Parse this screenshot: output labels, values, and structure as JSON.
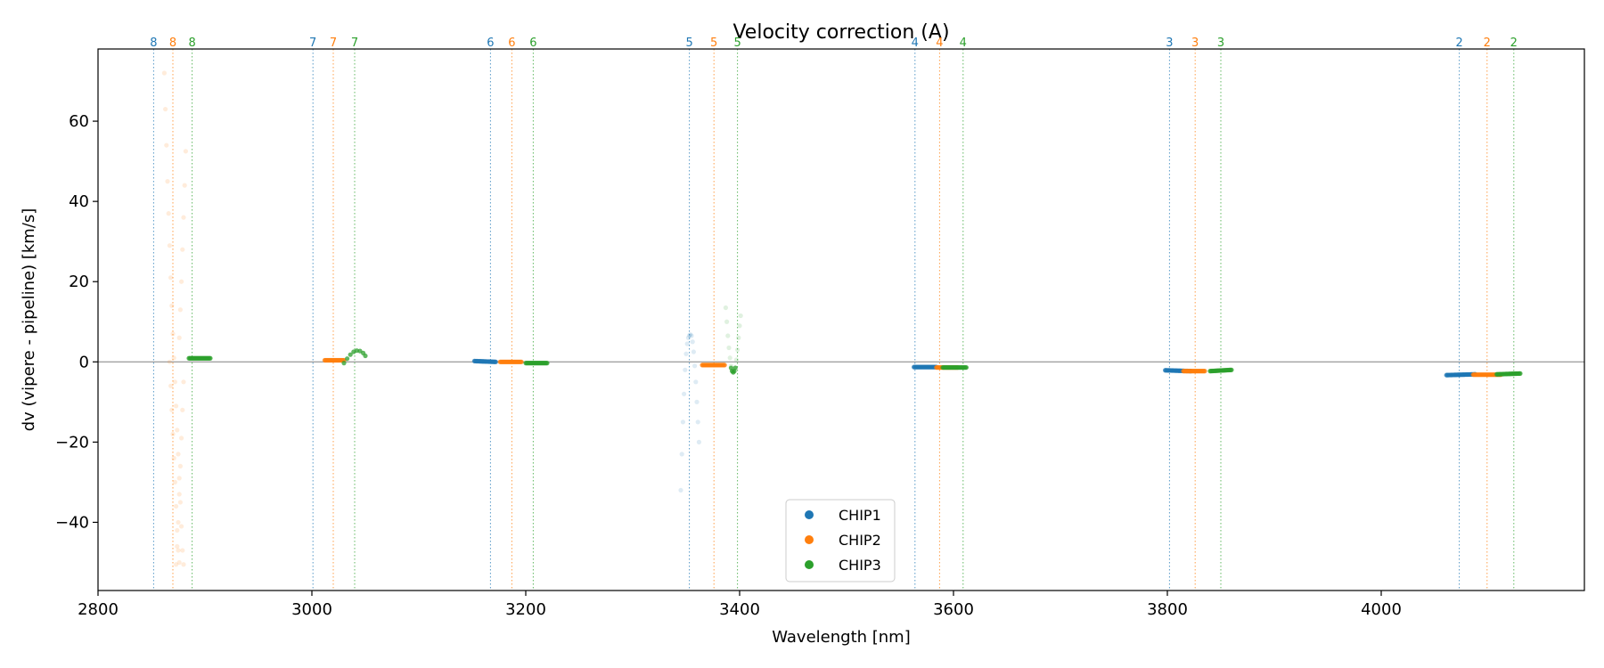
{
  "chart_data": {
    "type": "scatter",
    "title": "Velocity correction (A)",
    "xlabel": "Wavelength [nm]",
    "ylabel": "dv (vipere - pipeline) [km/s]",
    "xlim": [
      2800,
      4190
    ],
    "ylim": [
      -57,
      78
    ],
    "xticks": [
      2800,
      3000,
      3200,
      3400,
      3600,
      3800,
      4000
    ],
    "yticks": [
      -40,
      -20,
      0,
      20,
      40,
      60
    ],
    "xtick_labels": [
      "2800",
      "3000",
      "3200",
      "3400",
      "3600",
      "3800",
      "4000"
    ],
    "ytick_labels": [
      "−40",
      "−20",
      "0",
      "20",
      "40",
      "60"
    ],
    "zero_line": 0,
    "legend": {
      "placement": "lower-center",
      "entries": [
        "CHIP1",
        "CHIP2",
        "CHIP3"
      ]
    },
    "colors": {
      "CHIP1": "#1f77b4",
      "CHIP2": "#ff7f0e",
      "CHIP3": "#2ca02c"
    },
    "order_markers": [
      {
        "order": "8",
        "chip": "CHIP1",
        "x": 2852
      },
      {
        "order": "8",
        "chip": "CHIP2",
        "x": 2870
      },
      {
        "order": "8",
        "chip": "CHIP3",
        "x": 2888
      },
      {
        "order": "7",
        "chip": "CHIP1",
        "x": 3001
      },
      {
        "order": "7",
        "chip": "CHIP2",
        "x": 3020
      },
      {
        "order": "7",
        "chip": "CHIP3",
        "x": 3040
      },
      {
        "order": "6",
        "chip": "CHIP1",
        "x": 3167
      },
      {
        "order": "6",
        "chip": "CHIP2",
        "x": 3187
      },
      {
        "order": "6",
        "chip": "CHIP3",
        "x": 3207
      },
      {
        "order": "5",
        "chip": "CHIP1",
        "x": 3353
      },
      {
        "order": "5",
        "chip": "CHIP2",
        "x": 3376
      },
      {
        "order": "5",
        "chip": "CHIP3",
        "x": 3398
      },
      {
        "order": "4",
        "chip": "CHIP1",
        "x": 3564
      },
      {
        "order": "4",
        "chip": "CHIP2",
        "x": 3587
      },
      {
        "order": "4",
        "chip": "CHIP3",
        "x": 3609
      },
      {
        "order": "3",
        "chip": "CHIP1",
        "x": 3802
      },
      {
        "order": "3",
        "chip": "CHIP2",
        "x": 3826
      },
      {
        "order": "3",
        "chip": "CHIP3",
        "x": 3850
      },
      {
        "order": "2",
        "chip": "CHIP1",
        "x": 4073
      },
      {
        "order": "2",
        "chip": "CHIP2",
        "x": 4099
      },
      {
        "order": "2",
        "chip": "CHIP3",
        "x": 4124
      }
    ],
    "series": [
      {
        "name": "CHIP1",
        "segments": [
          {
            "x0": 3152,
            "x1": 3172,
            "y0": 0.2,
            "y1": 0.0,
            "faint": false
          },
          {
            "x0": 3563,
            "x1": 3584,
            "y0": -1.3,
            "y1": -1.3,
            "faint": false
          },
          {
            "x0": 3798,
            "x1": 3822,
            "y0": -2.1,
            "y1": -2.3,
            "faint": false
          },
          {
            "x0": 4061,
            "x1": 4088,
            "y0": -3.3,
            "y1": -3.1,
            "faint": false
          }
        ],
        "curves": [
          {
            "points": [
              [
                3345,
                -32
              ],
              [
                3346,
                -23
              ],
              [
                3347,
                -15
              ],
              [
                3348,
                -8
              ],
              [
                3349,
                -2
              ],
              [
                3350,
                2
              ],
              [
                3351,
                4.5
              ],
              [
                3352,
                6
              ],
              [
                3353,
                6.6
              ],
              [
                3354,
                6.8
              ],
              [
                3355,
                6.5
              ],
              [
                3356,
                5
              ],
              [
                3357,
                2.5
              ],
              [
                3358,
                -1
              ],
              [
                3359,
                -5
              ],
              [
                3360,
                -10
              ],
              [
                3361,
                -15
              ],
              [
                3362,
                -20
              ]
            ],
            "faint": true
          }
        ]
      },
      {
        "name": "CHIP2",
        "segments": [
          {
            "x0": 3012,
            "x1": 3030,
            "y0": 0.4,
            "y1": 0.4,
            "faint": false
          },
          {
            "x0": 3176,
            "x1": 3196,
            "y0": 0.0,
            "y1": 0.0,
            "faint": false
          },
          {
            "x0": 3365,
            "x1": 3386,
            "y0": -0.8,
            "y1": -0.8,
            "faint": false
          },
          {
            "x0": 3584,
            "x1": 3604,
            "y0": -1.4,
            "y1": -1.4,
            "faint": false
          },
          {
            "x0": 3815,
            "x1": 3835,
            "y0": -2.3,
            "y1": -2.3,
            "faint": false
          },
          {
            "x0": 4086,
            "x1": 4112,
            "y0": -3.2,
            "y1": -3.2,
            "faint": false
          }
        ],
        "curves": [
          {
            "points": [
              [
                2862,
                72
              ],
              [
                2863,
                63
              ],
              [
                2864,
                54
              ],
              [
                2865,
                45
              ],
              [
                2866,
                37
              ],
              [
                2867,
                29
              ],
              [
                2868,
                21
              ],
              [
                2869,
                14
              ],
              [
                2870,
                7
              ],
              [
                2871,
                1
              ],
              [
                2872,
                -5
              ],
              [
                2873,
                -11
              ],
              [
                2874,
                -17
              ],
              [
                2875,
                -23
              ],
              [
                2876,
                -29
              ],
              [
                2877,
                -35
              ],
              [
                2878,
                -41
              ],
              [
                2879,
                -47
              ],
              [
                2880,
                -50.5
              ]
            ],
            "faint": true
          },
          {
            "points": [
              [
                2867,
                0
              ],
              [
                2868,
                -6
              ],
              [
                2869,
                -12
              ],
              [
                2870,
                -18
              ],
              [
                2871,
                -24
              ],
              [
                2872,
                -30
              ],
              [
                2873,
                -36
              ],
              [
                2874,
                -42
              ],
              [
                2875,
                -47
              ],
              [
                2876,
                -50
              ]
            ],
            "faint": true
          },
          {
            "points": [
              [
                2876,
                6
              ],
              [
                2877,
                13
              ],
              [
                2878,
                20
              ],
              [
                2879,
                28
              ],
              [
                2880,
                36
              ],
              [
                2881,
                44
              ],
              [
                2882,
                52.5
              ]
            ],
            "faint": true
          },
          {
            "points": [
              [
                2873,
                -50.5
              ],
              [
                2874,
                -46
              ],
              [
                2875,
                -40
              ],
              [
                2876,
                -33
              ],
              [
                2877,
                -26
              ],
              [
                2878,
                -19
              ],
              [
                2879,
                -12
              ],
              [
                2880,
                -5
              ]
            ],
            "faint": true
          }
        ]
      },
      {
        "name": "CHIP3",
        "segments": [
          {
            "x0": 2885,
            "x1": 2905,
            "y0": 0.9,
            "y1": 0.9,
            "faint": false
          },
          {
            "x0": 3200,
            "x1": 3220,
            "y0": -0.3,
            "y1": -0.3,
            "faint": false
          },
          {
            "x0": 3590,
            "x1": 3612,
            "y0": -1.4,
            "y1": -1.4,
            "faint": false
          },
          {
            "x0": 3840,
            "x1": 3860,
            "y0": -2.3,
            "y1": -2.0,
            "faint": false
          },
          {
            "x0": 4108,
            "x1": 4130,
            "y0": -3.1,
            "y1": -2.9,
            "faint": false
          }
        ],
        "curves": [
          {
            "points": [
              [
                3030,
                -0.3
              ],
              [
                3033,
                0.8
              ],
              [
                3036,
                1.8
              ],
              [
                3039,
                2.5
              ],
              [
                3042,
                2.8
              ],
              [
                3045,
                2.7
              ],
              [
                3048,
                2.2
              ],
              [
                3050,
                1.5
              ]
            ],
            "faint": false
          },
          {
            "points": [
              [
                3387,
                13.5
              ],
              [
                3388,
                10
              ],
              [
                3389,
                6.5
              ],
              [
                3390,
                3.5
              ],
              [
                3391,
                1
              ],
              [
                3392,
                -1
              ],
              [
                3393,
                -2.2
              ],
              [
                3394,
                -2.6
              ],
              [
                3395,
                -2.4
              ],
              [
                3396,
                -1.4
              ],
              [
                3397,
                0.5
              ],
              [
                3398,
                3
              ],
              [
                3399,
                6
              ],
              [
                3400,
                9
              ],
              [
                3401,
                11.5
              ]
            ],
            "faint": true
          },
          {
            "points": [
              [
                3392,
                -1.5
              ],
              [
                3393,
                -2.3
              ],
              [
                3394,
                -2.6
              ],
              [
                3395,
                -2.3
              ],
              [
                3396,
                -1.5
              ]
            ],
            "faint": false
          }
        ]
      }
    ]
  }
}
